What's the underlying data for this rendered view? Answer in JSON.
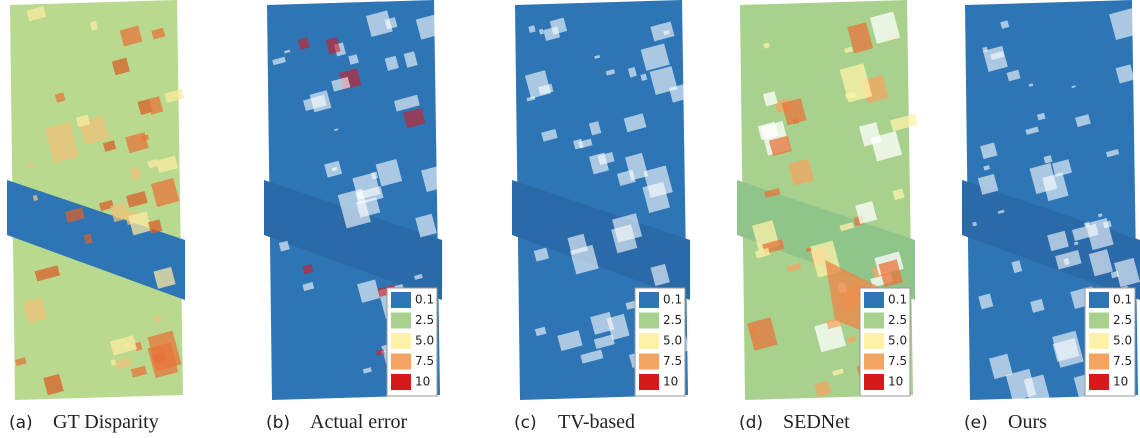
{
  "panels": [
    {
      "tag": "(a)",
      "caption": "GT Disparity",
      "base": "#b9d98f",
      "legend": false
    },
    {
      "tag": "(b)",
      "caption": "Actual error",
      "base": "#2e75b6",
      "legend": true
    },
    {
      "tag": "(c)",
      "caption": "TV-based",
      "base": "#2e75b6",
      "legend": true
    },
    {
      "tag": "(d)",
      "caption": "SEDNet",
      "base": "#a9d18e",
      "legend": true
    },
    {
      "tag": "(e)",
      "caption": "Ours",
      "base": "#2e75b6",
      "legend": true
    }
  ],
  "legend": [
    {
      "label": "0.1",
      "color": "#2e75b6"
    },
    {
      "label": "2.5",
      "color": "#a9d18e"
    },
    {
      "label": "5.0",
      "color": "#fff2a8"
    },
    {
      "label": "7.5",
      "color": "#f4a460"
    },
    {
      "label": "10",
      "color": "#d7191c"
    }
  ]
}
